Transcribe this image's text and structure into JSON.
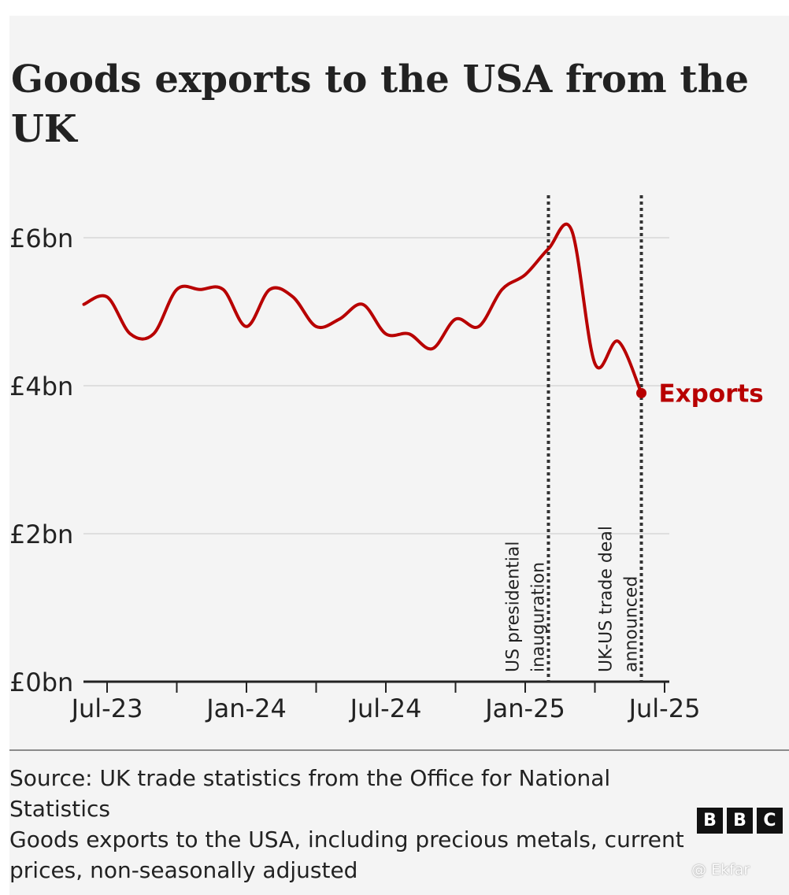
{
  "chart_data": {
    "type": "line",
    "title": "Goods exports to the USA from the UK",
    "xlabel": "",
    "ylabel": "",
    "y_ticks": [
      {
        "value": 0,
        "label": "£0bn"
      },
      {
        "value": 2,
        "label": "£2bn"
      },
      {
        "value": 4,
        "label": "£4bn"
      },
      {
        "value": 6,
        "label": "£6bn"
      }
    ],
    "ylim": [
      0,
      6.6
    ],
    "x_ticks": [
      {
        "month": 0,
        "label": "Jul-23"
      },
      {
        "month": 6,
        "label": "Jan-24"
      },
      {
        "month": 12,
        "label": "Jul-24"
      },
      {
        "month": 18,
        "label": "Jan-25"
      },
      {
        "month": 24,
        "label": "Jul-25"
      }
    ],
    "x_minor_ticks": [
      3,
      9,
      15,
      21
    ],
    "grid": "horizontal",
    "series": [
      {
        "name": "Exports",
        "color": "#b80000",
        "x": [
          "Jun-23",
          "Jul-23",
          "Aug-23",
          "Sep-23",
          "Oct-23",
          "Nov-23",
          "Dec-23",
          "Jan-24",
          "Feb-24",
          "Mar-24",
          "Apr-24",
          "May-24",
          "Jun-24",
          "Jul-24",
          "Aug-24",
          "Sep-24",
          "Oct-24",
          "Nov-24",
          "Dec-24",
          "Jan-25",
          "Feb-25",
          "Mar-25",
          "Apr-25",
          "May-25",
          "Jun-25"
        ],
        "values": [
          5.1,
          5.2,
          4.7,
          4.7,
          5.3,
          5.3,
          5.3,
          4.8,
          5.3,
          5.2,
          4.8,
          4.9,
          5.1,
          4.7,
          4.7,
          4.5,
          4.9,
          4.8,
          5.3,
          5.5,
          5.85,
          6.1,
          4.3,
          4.6,
          3.9
        ]
      }
    ],
    "annotations": [
      {
        "label": [
          "US presidential",
          "inauguration"
        ],
        "month": 19,
        "style": "dotted-vertical-line"
      },
      {
        "label": [
          "UK-US trade deal",
          "announced"
        ],
        "month": 23,
        "style": "dotted-vertical-line"
      }
    ]
  },
  "source": "Source: UK trade statistics from the Office for National Statistics",
  "footnote": "Goods exports to the USA, including precious metals, current prices, non-seasonally adjusted",
  "logo": {
    "letters": [
      "B",
      "B",
      "C"
    ]
  },
  "watermark": "@ Ekfar"
}
